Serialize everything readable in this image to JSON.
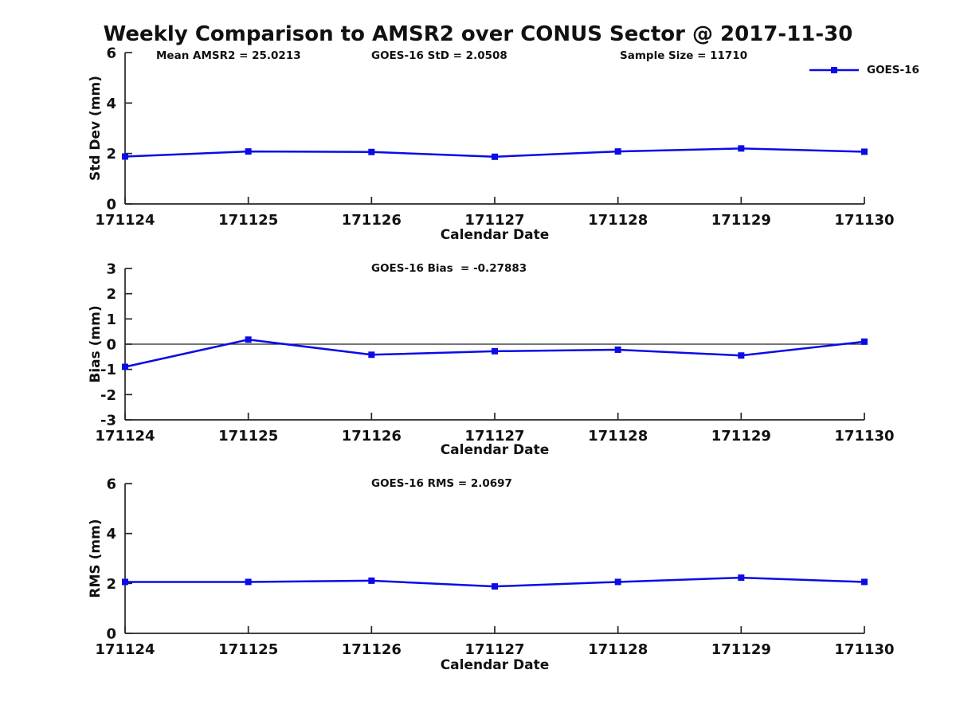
{
  "title": "Weekly Comparison to AMSR2 over CONUS Sector @ 2017-11-30",
  "colors": {
    "line": "#0b0be6",
    "axis": "#262626",
    "zero_line": "#262626",
    "text": "#111111",
    "background": "#ffffff"
  },
  "chart_data": [
    {
      "type": "line",
      "ylabel": "Std Dev (mm)",
      "xlabel": "Calendar Date",
      "categories": [
        "171124",
        "171125",
        "171126",
        "171127",
        "171128",
        "171129",
        "171130"
      ],
      "series": [
        {
          "name": "GOES-16",
          "color": "#0b0be6",
          "marker": "square",
          "values": [
            1.88,
            2.08,
            2.06,
            1.87,
            2.08,
            2.2,
            2.07
          ]
        }
      ],
      "ylim": [
        0,
        6
      ],
      "yticks": [
        0,
        2,
        4,
        6
      ],
      "annotations": [
        "Mean AMSR2 = 25.0213",
        "GOES-16 StD = 2.0508",
        "Sample Size = 11710"
      ],
      "legend": {
        "label": "GOES-16",
        "position": "top-right"
      },
      "grid": false,
      "zero_line": false
    },
    {
      "type": "line",
      "ylabel": "Bias (mm)",
      "xlabel": "Calendar Date",
      "categories": [
        "171124",
        "171125",
        "171126",
        "171127",
        "171128",
        "171129",
        "171130"
      ],
      "series": [
        {
          "name": "GOES-16",
          "color": "#0b0be6",
          "marker": "square",
          "values": [
            -0.9,
            0.18,
            -0.42,
            -0.28,
            -0.22,
            -0.45,
            0.1
          ]
        }
      ],
      "ylim": [
        -3,
        3
      ],
      "yticks": [
        -3,
        -2,
        -1,
        0,
        1,
        2,
        3
      ],
      "annotations": [
        "GOES-16 Bias  = -0.27883"
      ],
      "grid": false,
      "zero_line": true
    },
    {
      "type": "line",
      "ylabel": "RMS (mm)",
      "xlabel": "Calendar Date",
      "categories": [
        "171124",
        "171125",
        "171126",
        "171127",
        "171128",
        "171129",
        "171130"
      ],
      "series": [
        {
          "name": "GOES-16",
          "color": "#0b0be6",
          "marker": "square",
          "values": [
            2.06,
            2.06,
            2.11,
            1.88,
            2.06,
            2.23,
            2.06
          ]
        }
      ],
      "ylim": [
        0,
        6
      ],
      "yticks": [
        0,
        2,
        4,
        6
      ],
      "annotations": [
        "GOES-16 RMS = 2.0697"
      ],
      "grid": false,
      "zero_line": false
    }
  ]
}
